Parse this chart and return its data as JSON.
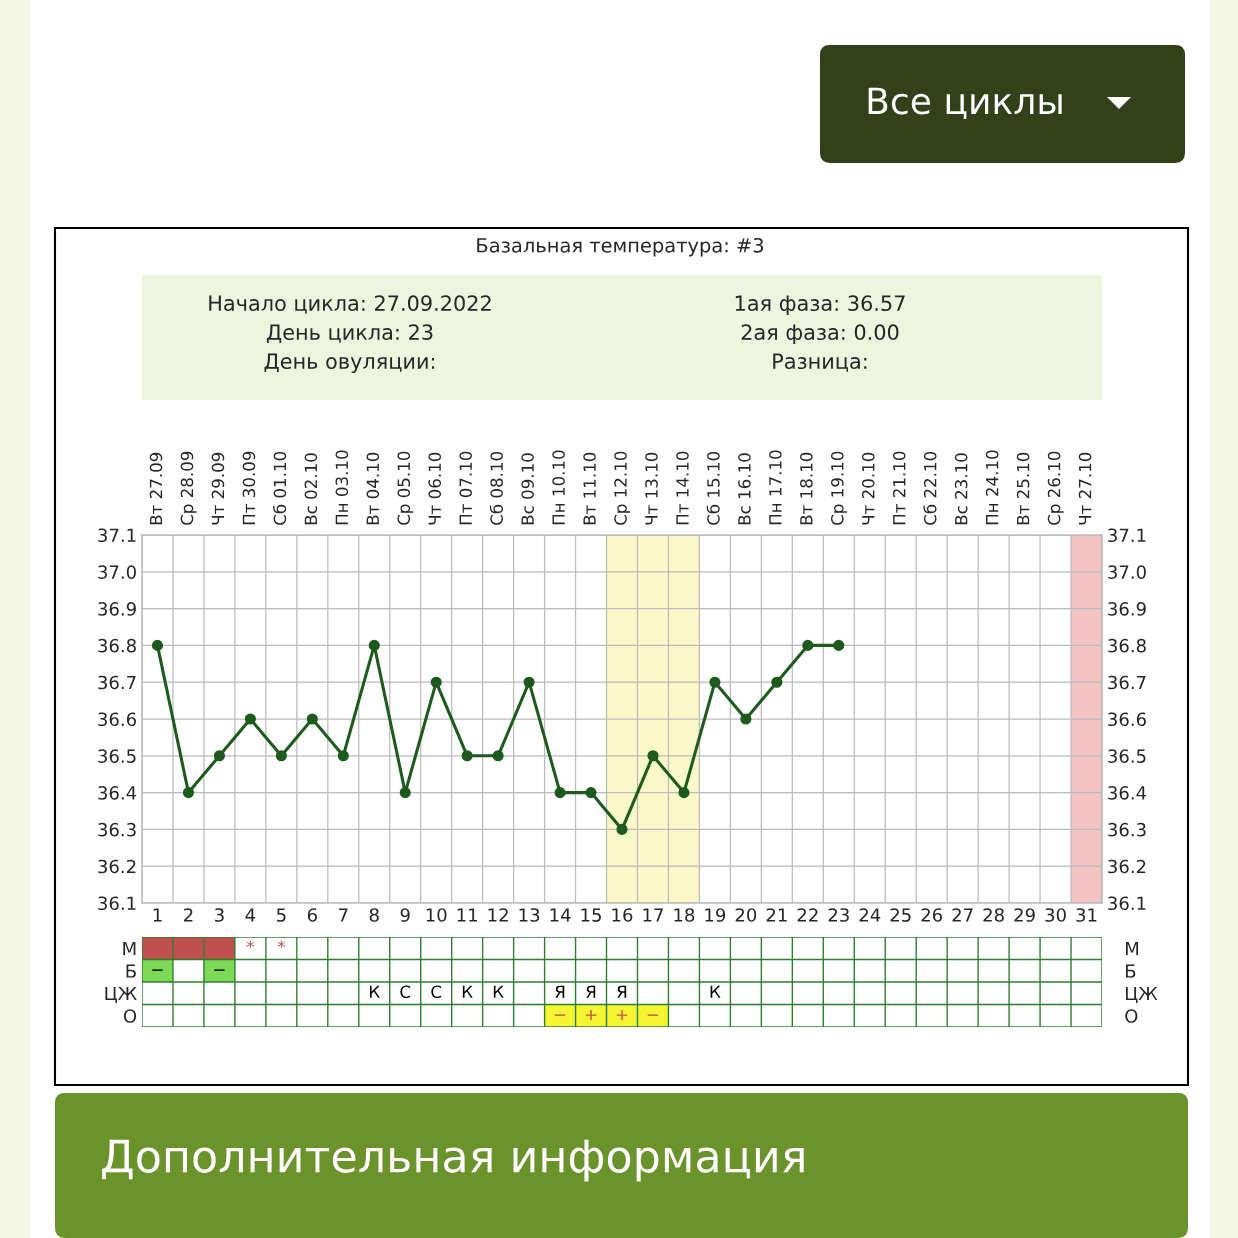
{
  "chart_data": [
    {
      "type": "line",
      "title": "Базальная температура: #3",
      "annotations": [
        "Начало цикла: 27.09.2022",
        "День цикла: 23",
        "День овуляции:",
        "1ая фаза: 36.57",
        "2ая фаза: 0.00",
        "Разница:",
        "Все циклы",
        "Дополнительная информация",
        "Вт 27.09",
        "Ср 28.09",
        "Чт 29.09",
        "Пт 30.09",
        "Сб 01.10",
        "Вс 02.10",
        "Пн 03.10",
        "Вт 04.10",
        "Ср 05.10",
        "Чт 06.10",
        "Пт 07.10",
        "Сб 08.10",
        "Вс 09.10",
        "Пн 10.10",
        "Вт 11.10",
        "Ср 12.10",
        "Чт 13.10",
        "Пт 14.10",
        "Сб 15.10",
        "Вс 16.10",
        "Пн 17.10",
        "Вт 18.10",
        "Ср 19.10",
        "Чт 20.10",
        "Пт 21.10",
        "Сб 22.10",
        "Вс 23.10",
        "Пн 24.10",
        "Вт 25.10",
        "Ср 26.10",
        "Чт 27.10"
      ],
      "x": [
        1,
        2,
        3,
        4,
        5,
        6,
        7,
        8,
        9,
        10,
        11,
        12,
        13,
        14,
        15,
        16,
        17,
        18,
        19,
        20,
        21,
        22,
        23
      ],
      "series": [
        {
          "color": "#1e5a1e",
          "values": [
            36.8,
            36.4,
            36.5,
            36.6,
            36.5,
            36.6,
            36.5,
            36.8,
            36.4,
            36.7,
            36.5,
            36.5,
            36.7,
            36.4,
            36.4,
            36.3,
            36.5,
            36.4,
            36.7,
            36.6,
            36.7,
            36.8,
            36.8
          ]
        }
      ],
      "xlim": [
        0.5,
        31.5
      ],
      "xticks": [
        1,
        2,
        3,
        4,
        5,
        6,
        7,
        8,
        9,
        10,
        11,
        12,
        13,
        14,
        15,
        16,
        17,
        18,
        19,
        20,
        21,
        22,
        23,
        24,
        25,
        26,
        27,
        28,
        29,
        30,
        31
      ],
      "ylim": [
        36.1,
        37.1
      ],
      "yticks": [
        36.1,
        36.2,
        36.3,
        36.4,
        36.5,
        36.6,
        36.7,
        36.8,
        36.9,
        {
          "value": 37,
          "label": "37.0"
        },
        37.1
      ],
      "y2lim": [
        36.1,
        37.1
      ],
      "y2ticks": [
        36.1,
        36.2,
        36.3,
        36.4,
        36.5,
        36.6,
        36.7,
        36.8,
        36.9,
        {
          "value": 37,
          "label": "37.0"
        },
        37.1
      ],
      "grid": true,
      "marker": "circle",
      "line_style": "solid",
      "bands": [
        {
          "axis": "x",
          "from": 15.5,
          "to": 18.5,
          "color": "#f8f8c8"
        },
        {
          "axis": "x",
          "from": 30.5,
          "to": 31.5,
          "color": "#f4c4c4"
        }
      ]
    },
    {
      "type": "other",
      "y_categories": [
        "М",
        "Б",
        "ЦЖ",
        "О"
      ],
      "y2_categories": [
        "М",
        "Б",
        "ЦЖ",
        "О"
      ],
      "cell_labels": [
        [
          null,
          null,
          null,
          "*",
          "*",
          null,
          null,
          null,
          null,
          null,
          null,
          null,
          null,
          null,
          null,
          null,
          null,
          null,
          null,
          null,
          null,
          null,
          null,
          null,
          null,
          null,
          null,
          null,
          null,
          null,
          null
        ],
        [
          "−",
          null,
          "−",
          null,
          null,
          null,
          null,
          null,
          null,
          null,
          null,
          null,
          null,
          null,
          null,
          null,
          null,
          null,
          null,
          null,
          null,
          null,
          null,
          null,
          null,
          null,
          null,
          null,
          null,
          null,
          null
        ],
        [
          null,
          null,
          null,
          null,
          null,
          null,
          null,
          "К",
          "С",
          "С",
          "К",
          "К",
          null,
          "Я",
          "Я",
          "Я",
          null,
          null,
          "К",
          null,
          null,
          null,
          null,
          null,
          null,
          null,
          null,
          null,
          null,
          null,
          null
        ],
        [
          null,
          null,
          null,
          null,
          null,
          null,
          null,
          null,
          null,
          null,
          null,
          null,
          null,
          "−",
          "+",
          "+",
          "−",
          null,
          null,
          null,
          null,
          null,
          null,
          null,
          null,
          null,
          null,
          null,
          null,
          null,
          null
        ]
      ],
      "colors": [
        [
          "#c0504d",
          "#c0504d",
          "#c0504d",
          null,
          null,
          null,
          null,
          null,
          null,
          null,
          null,
          null,
          null,
          null,
          null,
          null,
          null,
          null,
          null,
          null,
          null,
          null,
          null,
          null,
          null,
          null,
          null,
          null,
          null,
          null,
          null
        ],
        [
          "#7ed957",
          null,
          "#7ed957",
          null,
          null,
          null,
          null,
          null,
          null,
          null,
          null,
          null,
          null,
          null,
          null,
          null,
          null,
          null,
          null,
          null,
          null,
          null,
          null,
          null,
          null,
          null,
          null,
          null,
          null,
          null,
          null
        ],
        [
          null,
          null,
          null,
          null,
          null,
          null,
          null,
          null,
          null,
          null,
          null,
          null,
          null,
          null,
          null,
          null,
          null,
          null,
          null,
          null,
          null,
          null,
          null,
          null,
          null,
          null,
          null,
          null,
          null,
          null,
          null
        ],
        [
          null,
          null,
          null,
          null,
          null,
          null,
          null,
          null,
          null,
          null,
          null,
          null,
          null,
          "#f5f532",
          "#f5f532",
          "#f5f532",
          "#f5f532",
          null,
          null,
          null,
          null,
          null,
          null,
          null,
          null,
          null,
          null,
          null,
          null,
          null,
          null
        ]
      ]
    }
  ]
}
